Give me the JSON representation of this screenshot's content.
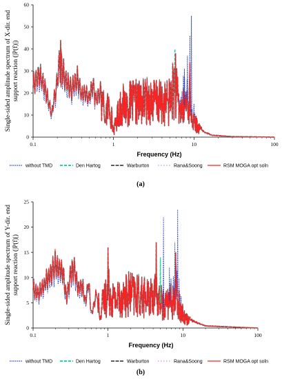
{
  "colors": {
    "without_tmd": "#2233cc",
    "den_hartog": "#1ed6a0",
    "warburton": "#5a5a5a",
    "rana_soong": "#c98ce0",
    "rsm": "#ff2020"
  },
  "legend_items": [
    "without TMD",
    "Den Hartog",
    "Warburton",
    "Rana&Soong",
    "RSM MOGA opt soln"
  ],
  "chart_data": [
    {
      "type": "line",
      "caption": "(a)",
      "xlabel": "Frequency (Hz)",
      "ylabel_lines": [
        "Single-sided amplitude spectrum of X-dir. end",
        "support reaction (|P(f)|)"
      ],
      "xscale": "log",
      "xlim": [
        0.1,
        100
      ],
      "ylim": [
        0,
        60
      ],
      "xticks": [
        0.1,
        1,
        10,
        100
      ],
      "xtick_labels": [
        "0.1",
        "1",
        "10",
        "100"
      ],
      "yticks": [
        0,
        10,
        20,
        30,
        40,
        50,
        60
      ],
      "ytick_labels": [
        "0",
        "10",
        "20",
        "30",
        "40",
        "50",
        "60"
      ],
      "legend_position": "bottom",
      "grid": false,
      "anchors": [
        [
          0.1,
          27
        ],
        [
          0.12,
          34
        ],
        [
          0.15,
          22
        ],
        [
          0.17,
          12
        ],
        [
          0.2,
          30
        ],
        [
          0.215,
          43
        ],
        [
          0.25,
          30
        ],
        [
          0.3,
          26
        ],
        [
          0.36,
          31
        ],
        [
          0.4,
          22
        ],
        [
          0.45,
          24
        ],
        [
          0.5,
          21
        ],
        [
          0.55,
          29
        ],
        [
          0.6,
          20
        ],
        [
          0.7,
          24
        ],
        [
          0.8,
          18
        ],
        [
          0.9,
          23
        ],
        [
          1.0,
          4
        ],
        [
          1.2,
          22
        ],
        [
          1.5,
          24
        ],
        [
          2,
          25
        ],
        [
          2.5,
          26
        ],
        [
          3,
          27
        ],
        [
          4,
          24
        ],
        [
          5,
          26
        ],
        [
          5.7,
          38
        ],
        [
          6.5,
          22
        ],
        [
          7.5,
          24
        ],
        [
          8,
          28
        ],
        [
          8.8,
          30
        ],
        [
          9.5,
          14
        ],
        [
          11,
          8
        ],
        [
          13,
          3
        ],
        [
          17,
          1
        ],
        [
          30,
          0.3
        ],
        [
          100,
          0
        ]
      ],
      "peaks": [
        [
          0.22,
          44,
          "all"
        ],
        [
          5.8,
          40,
          "den"
        ],
        [
          5.9,
          38,
          "all"
        ],
        [
          7.6,
          31,
          "raw"
        ],
        [
          8.3,
          37,
          "raw"
        ],
        [
          8.9,
          46,
          "raw"
        ],
        [
          9.3,
          55,
          "raw"
        ],
        [
          8.9,
          34,
          "all"
        ]
      ],
      "series": [
        {
          "name": "without TMD"
        },
        {
          "name": "Den Hartog"
        },
        {
          "name": "Warburton"
        },
        {
          "name": "Rana&Soong"
        },
        {
          "name": "RSM MOGA opt soln"
        }
      ]
    },
    {
      "type": "line",
      "caption": "(b)",
      "xlabel": "Frequency (Hz)",
      "ylabel_lines": [
        "Single-sided amplitude spectrum of Y-dir. end",
        "support reaction (|P(f)|)"
      ],
      "xscale": "log",
      "xlim": [
        0.1,
        100
      ],
      "ylim": [
        0,
        25
      ],
      "xticks": [
        0.1,
        1,
        10,
        100
      ],
      "xtick_labels": [
        "0.1",
        "1",
        "10",
        "100"
      ],
      "yticks": [
        0,
        5,
        10,
        15,
        20,
        25
      ],
      "ytick_labels": [
        "0",
        "5",
        "10",
        "15",
        "20",
        "25"
      ],
      "legend_position": "bottom",
      "grid": false,
      "anchors": [
        [
          0.1,
          9
        ],
        [
          0.12,
          8
        ],
        [
          0.15,
          11
        ],
        [
          0.2,
          14.5
        ],
        [
          0.25,
          13
        ],
        [
          0.28,
          7
        ],
        [
          0.32,
          13
        ],
        [
          0.35,
          14
        ],
        [
          0.4,
          9
        ],
        [
          0.45,
          10
        ],
        [
          0.5,
          6
        ],
        [
          0.55,
          11
        ],
        [
          0.6,
          3
        ],
        [
          0.7,
          8
        ],
        [
          0.8,
          6
        ],
        [
          0.9,
          9
        ],
        [
          1.0,
          12
        ],
        [
          1.2,
          9
        ],
        [
          1.5,
          10
        ],
        [
          2,
          11
        ],
        [
          2.5,
          10
        ],
        [
          3,
          10
        ],
        [
          3.5,
          9
        ],
        [
          4,
          11
        ],
        [
          4.5,
          10
        ],
        [
          5,
          9
        ],
        [
          5.5,
          7
        ],
        [
          6.5,
          9
        ],
        [
          7.5,
          10
        ],
        [
          8.5,
          11
        ],
        [
          9.5,
          6
        ],
        [
          11,
          3
        ],
        [
          14,
          1.5
        ],
        [
          20,
          0.5
        ],
        [
          100,
          0
        ]
      ],
      "peaks": [
        [
          1.0,
          16,
          "all"
        ],
        [
          4.4,
          17,
          "all"
        ],
        [
          5.0,
          14,
          "den"
        ],
        [
          5.5,
          22,
          "raw"
        ],
        [
          6.6,
          12,
          "raw"
        ],
        [
          7.8,
          17,
          "raw"
        ],
        [
          8.5,
          23.5,
          "raw"
        ],
        [
          8.0,
          15,
          "all"
        ]
      ],
      "series": [
        {
          "name": "without TMD"
        },
        {
          "name": "Den Hartog"
        },
        {
          "name": "Warburton"
        },
        {
          "name": "Rana&Soong"
        },
        {
          "name": "RSM MOGA opt soln"
        }
      ]
    }
  ]
}
